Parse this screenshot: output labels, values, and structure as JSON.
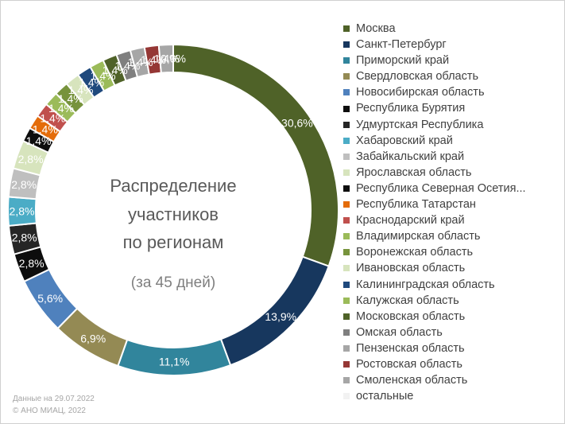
{
  "chart_data": {
    "type": "pie",
    "variant": "donut",
    "title": [
      "Распределение",
      "участников",
      "по регионам"
    ],
    "subtitle": "(за 45 дней)",
    "legend_position": "right",
    "slices": [
      {
        "name": "Москва",
        "value": 30.6,
        "label": "30,6%",
        "color": "#4f6228"
      },
      {
        "name": "Санкт-Петербург",
        "value": 13.9,
        "label": "13,9%",
        "color": "#17375e"
      },
      {
        "name": "Приморский край",
        "value": 11.1,
        "label": "11,1%",
        "color": "#31859c"
      },
      {
        "name": "Свердловская область",
        "value": 6.9,
        "label": "6,9%",
        "color": "#948a54"
      },
      {
        "name": "Новосибирская область",
        "value": 5.6,
        "label": "5,6%",
        "color": "#4f81bd"
      },
      {
        "name": "Республика Бурятия",
        "value": 2.8,
        "label": "2,8%",
        "color": "#0d0d0d"
      },
      {
        "name": "Удмуртская Республика",
        "value": 2.8,
        "label": "2,8%",
        "color": "#262626"
      },
      {
        "name": "Хабаровский край",
        "value": 2.8,
        "label": "2,8%",
        "color": "#4bacc6"
      },
      {
        "name": "Забайкальский край",
        "value": 2.8,
        "label": "2,8%",
        "color": "#bfbfbf"
      },
      {
        "name": "Ярославская область",
        "value": 2.8,
        "label": "2,8%",
        "color": "#d7e4bd"
      },
      {
        "name": "Республика Северная Осетия...",
        "value": 1.4,
        "label": "1,4%",
        "color": "#0d0d0d"
      },
      {
        "name": "Республика Татарстан",
        "value": 1.4,
        "label": "1,4%",
        "color": "#e46c0a"
      },
      {
        "name": "Краснодарский край",
        "value": 1.4,
        "label": "1,4%",
        "color": "#c0504d"
      },
      {
        "name": "Владимирская область",
        "value": 1.4,
        "label": "1,4%",
        "color": "#9bbb59"
      },
      {
        "name": "Воронежская область",
        "value": 1.4,
        "label": "1,4%",
        "color": "#77933c"
      },
      {
        "name": "Ивановская область",
        "value": 1.4,
        "label": "1,4%",
        "color": "#d7e4bd"
      },
      {
        "name": "Калининградская область",
        "value": 1.4,
        "label": "1,4%",
        "color": "#1f497d"
      },
      {
        "name": "Калужская область",
        "value": 1.4,
        "label": "1,4%",
        "color": "#9bbb59"
      },
      {
        "name": "Московская область",
        "value": 1.4,
        "label": "1,4%",
        "color": "#4f6228"
      },
      {
        "name": "Омская область",
        "value": 1.4,
        "label": "1,4%",
        "color": "#7f7f7f"
      },
      {
        "name": "Пензенская область",
        "value": 1.4,
        "label": "1,4%",
        "color": "#a6a6a6"
      },
      {
        "name": "Ростовская область",
        "value": 1.4,
        "label": "1,4%",
        "color": "#953735"
      },
      {
        "name": "Смоленская область",
        "value": 1.4,
        "label": "1,4%",
        "color": "#a6a6a6"
      },
      {
        "name": "остальные",
        "value": 0.0,
        "label": "0,0%",
        "color": "#f2f2f2"
      }
    ]
  },
  "footer": {
    "date_note": "Данные на 29.07.2022",
    "copyright": "© АНО МИАЦ, 2022"
  }
}
